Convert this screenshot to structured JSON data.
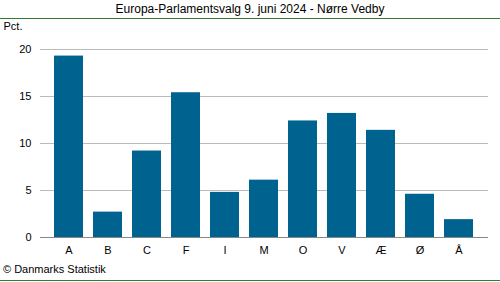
{
  "chart_data": {
    "type": "bar",
    "title": "Europa-Parlamentsvalg 9. juni 2024 - Nørre Vedby",
    "y_label": "Pct.",
    "caption": "© Danmarks Statistik",
    "categories": [
      "A",
      "B",
      "C",
      "F",
      "I",
      "M",
      "O",
      "V",
      "Æ",
      "Ø",
      "Å"
    ],
    "values": [
      19.3,
      2.7,
      9.2,
      15.4,
      4.8,
      6.1,
      12.4,
      13.2,
      11.4,
      4.6,
      1.9
    ],
    "color": "#00628f",
    "ylim": [
      0,
      20
    ],
    "yticks": [
      0,
      5,
      10,
      15,
      20
    ],
    "grid": true
  }
}
